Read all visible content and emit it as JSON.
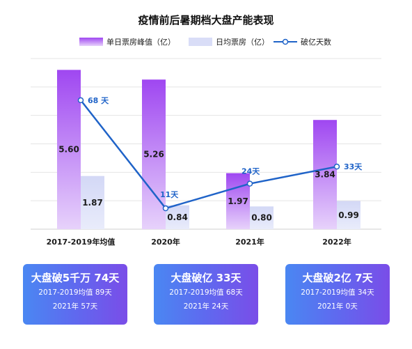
{
  "chart_data": {
    "type": "bar",
    "title": "疫情前后暑期档大盘产能表现",
    "categories": [
      "2017-2019年均值",
      "2020年",
      "2021年",
      "2022年"
    ],
    "series": [
      {
        "name": "单日票房峰值（亿）",
        "type": "bar",
        "color": "#a84ff2",
        "values": [
          5.6,
          5.26,
          1.97,
          3.84
        ]
      },
      {
        "name": "日均票房（亿）",
        "type": "bar",
        "color": "#d9ddf7",
        "values": [
          1.87,
          0.84,
          0.8,
          0.99
        ]
      },
      {
        "name": "破亿天数",
        "type": "line",
        "color": "#1f63c8",
        "values": [
          68,
          11,
          24,
          33
        ],
        "labels": [
          "68 天",
          "11天",
          "24天",
          "33天"
        ]
      }
    ],
    "ylim": [
      0,
      6
    ],
    "y2lim": [
      0,
      90
    ],
    "grid": true,
    "legend": "top"
  },
  "cards": [
    {
      "title": "大盘破5千万 74天",
      "line1": "2017-2019均值 89天",
      "line2": "2021年 57天"
    },
    {
      "title": "大盘破亿 33天",
      "line1": "2017-2019均值 68天",
      "line2": "2021年 24天"
    },
    {
      "title": "大盘破2亿 7天",
      "line1": "2017-2019均值 34天",
      "line2": "2021年 0天"
    }
  ]
}
